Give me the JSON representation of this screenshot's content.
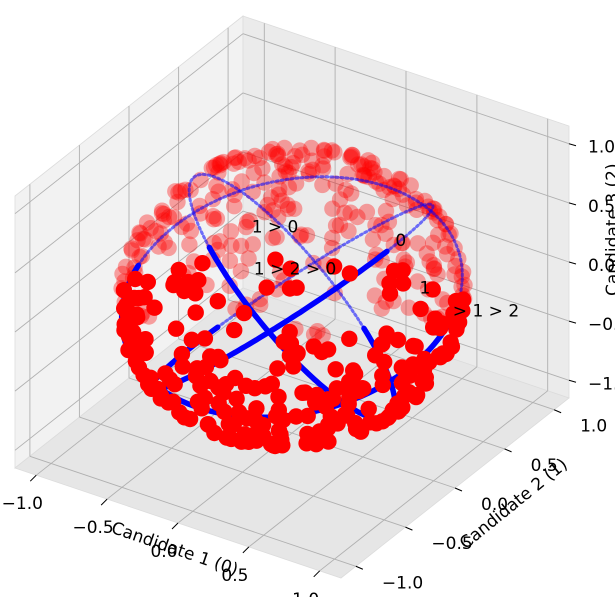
{
  "chart_data": {
    "type": "scatter",
    "projection": "3d",
    "title": "",
    "xlabel": "Candidate 1 (0)",
    "ylabel": "Candidate 2 (1)",
    "zlabel": "Candidate 3 (2)",
    "xlim": [
      -1.15,
      1.15
    ],
    "ylim": [
      -1.15,
      1.15
    ],
    "zlim": [
      -1.15,
      1.15
    ],
    "xticks": [
      -1.0,
      -0.5,
      0.0,
      0.5,
      1.0
    ],
    "yticks": [
      -1.0,
      -0.5,
      0.0,
      0.5,
      1.0
    ],
    "zticks": [
      -1.0,
      -0.5,
      0.0,
      0.5,
      1.0
    ],
    "xtick_labels": [
      "−1.0",
      "−0.5",
      "0.0",
      "0.5",
      "1.0"
    ],
    "ytick_labels": [
      "−1.0",
      "−0.5",
      "0.0",
      "0.5",
      "1.0"
    ],
    "ztick_labels": [
      "−1.0",
      "−0.5",
      "0.0",
      "0.5",
      "1.0"
    ],
    "grid": true,
    "series": [
      {
        "kind": "points",
        "color": "#ff0000",
        "marker": "circle",
        "distribution": "random points on the unit sphere",
        "count": 500
      },
      {
        "kind": "ring",
        "color": "#0000ff",
        "plane": "x + y + z = 0",
        "radius": 1.0
      },
      {
        "kind": "ring",
        "color": "#0000ff",
        "plane": "z = x",
        "radius": 1.0
      },
      {
        "kind": "ring",
        "color": "#0000ff",
        "plane": "x = y",
        "radius": 1.0
      }
    ],
    "annotations": [
      {
        "text": "1 > 0",
        "x": 0.1,
        "y": -0.55,
        "z": 0.95
      },
      {
        "text": "1 > 2 > 0",
        "x": 0.15,
        "y": -0.6,
        "z": 0.65
      },
      {
        "text": "0",
        "x": 0.45,
        "y": 0.4,
        "z": 0.35
      },
      {
        "text": "1",
        "x": 0.2,
        "y": 1.0,
        "z": -0.55
      },
      {
        "text": "> 1 > 2",
        "x": 0.4,
        "y": 1.05,
        "z": -0.7
      }
    ]
  },
  "colors": {
    "points": "#ff0000",
    "rings": "#0000ff",
    "pane_left": "#f2f2f2",
    "pane_right": "#ebebeb",
    "pane_floor": "#e6e6e6",
    "grid": "#b0b0b0"
  }
}
